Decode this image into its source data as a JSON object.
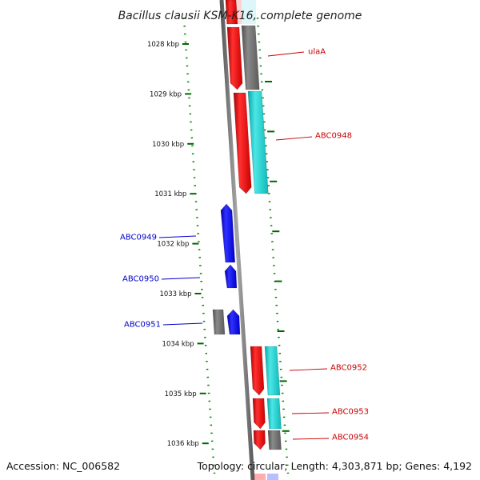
{
  "title": "Bacillus clausii KSM-K16, complete genome",
  "accession": "Accession: NC_006582",
  "topology": "Topology: circular; Length: 4,303,871 bp; Genes: 4,192",
  "colors": {
    "backbone": "#808080",
    "forward_gene": "#ff0000",
    "reverse_gene": "#0000ff",
    "feature_gray": "#707070",
    "feature_cyan": "#18c8c8",
    "tick": "#006600",
    "forward_label": "#cc0000",
    "reverse_label": "#0000cc"
  },
  "ticks": [
    {
      "label": "1028 kbp",
      "kbp": 1028
    },
    {
      "label": "1029 kbp",
      "kbp": 1029
    },
    {
      "label": "1030 kbp",
      "kbp": 1030
    },
    {
      "label": "1031 kbp",
      "kbp": 1031
    },
    {
      "label": "1032 kbp",
      "kbp": 1032
    },
    {
      "label": "1033 kbp",
      "kbp": 1033
    },
    {
      "label": "1034 kbp",
      "kbp": 1034
    },
    {
      "label": "1035 kbp",
      "kbp": 1035
    },
    {
      "label": "1036 kbp",
      "kbp": 1036
    }
  ],
  "genes": [
    {
      "name": "ulaA",
      "strand": "forward"
    },
    {
      "name": "ABC0948",
      "strand": "forward"
    },
    {
      "name": "ABC0949",
      "strand": "reverse"
    },
    {
      "name": "ABC0950",
      "strand": "reverse"
    },
    {
      "name": "ABC0951",
      "strand": "reverse"
    },
    {
      "name": "ABC0952",
      "strand": "forward"
    },
    {
      "name": "ABC0953",
      "strand": "forward"
    },
    {
      "name": "ABC0954",
      "strand": "forward"
    }
  ]
}
